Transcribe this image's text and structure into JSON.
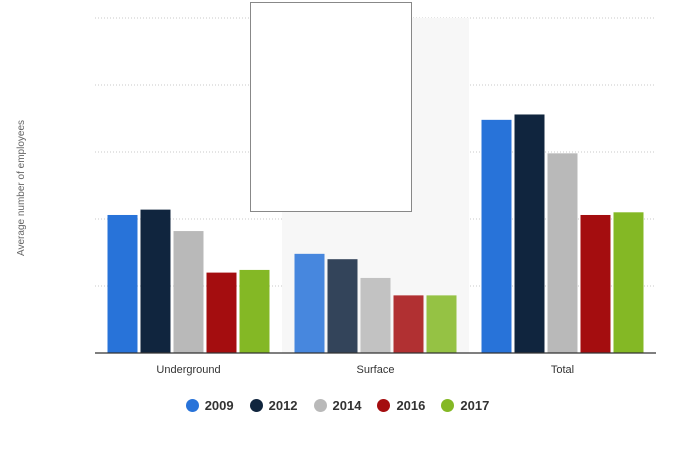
{
  "chart_data": {
    "type": "bar",
    "title": "",
    "xlabel": "",
    "ylabel": "Average number of employees",
    "ylim": [
      0,
      25
    ],
    "grid": true,
    "legend_position": "bottom-center",
    "categories": [
      "Underground",
      "Surface",
      "Total"
    ],
    "series": [
      {
        "name": "2009",
        "color": "#2873d9",
        "values": [
          10.3,
          7.4,
          17.4
        ]
      },
      {
        "name": "2012",
        "color": "#10253e",
        "values": [
          10.7,
          7.0,
          17.8
        ]
      },
      {
        "name": "2014",
        "color": "#b9b9b9",
        "values": [
          9.1,
          5.6,
          14.9
        ]
      },
      {
        "name": "2016",
        "color": "#a40d0f",
        "values": [
          6.0,
          4.3,
          10.3
        ]
      },
      {
        "name": "2017",
        "color": "#84b825",
        "values": [
          6.2,
          4.3,
          10.5
        ]
      }
    ],
    "highlighted_category": "Surface"
  }
}
